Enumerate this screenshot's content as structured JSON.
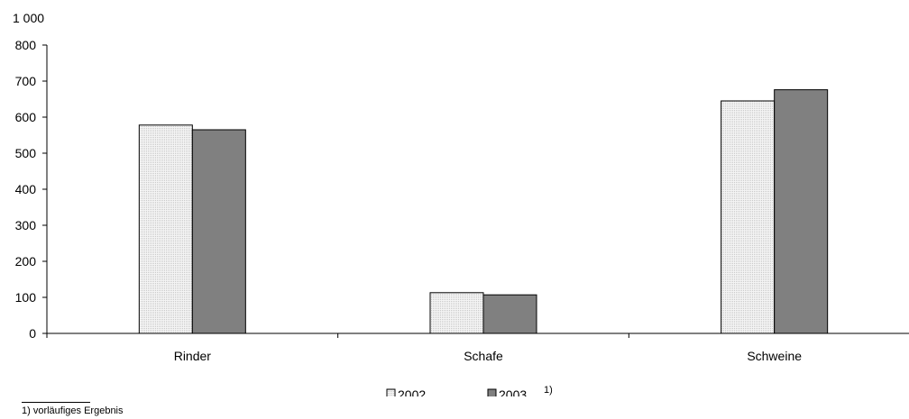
{
  "chart_data": {
    "type": "bar",
    "unit_label": "1 000",
    "categories": [
      "Rinder",
      "Schafe",
      "Schweine"
    ],
    "series": [
      {
        "name": "2002",
        "values": [
          578,
          113,
          645
        ]
      },
      {
        "name": "2003",
        "values": [
          565,
          107,
          676
        ],
        "name_note": "1)"
      }
    ],
    "ylim": [
      0,
      800
    ],
    "yticks": [
      0,
      100,
      200,
      300,
      400,
      500,
      600,
      700,
      800
    ],
    "grid": false,
    "legend_position": "bottom-center",
    "colors": {
      "2002": "#eeeeee",
      "2003": "#808080"
    }
  },
  "footnote": "1) vorläufiges Ergebnis"
}
